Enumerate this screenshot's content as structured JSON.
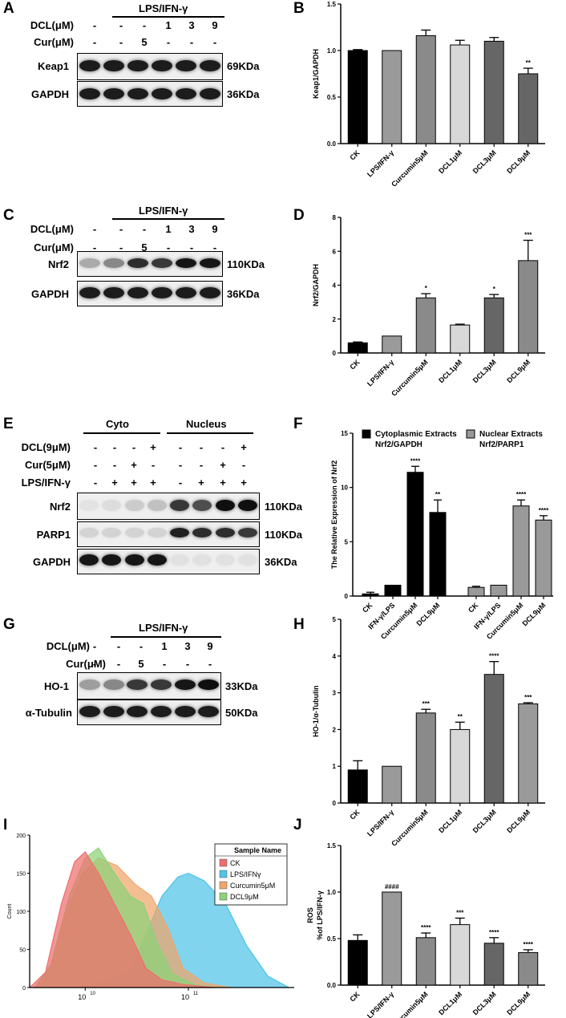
{
  "letters": [
    "A",
    "B",
    "C",
    "D",
    "E",
    "F",
    "G",
    "H",
    "I",
    "J"
  ],
  "units": {
    "keap1": "69KDa",
    "gapdh": "36KDa",
    "nrf2": "110KDa",
    "parp1": "110KDa",
    "ho1": "33KDa",
    "tubulin": "50KDa"
  },
  "blot_labels": {
    "treat": "LPS/IFN-γ",
    "dcl": "DCL(μM)",
    "cur": "Cur(μM)",
    "keap1": "Keap1",
    "gapdh": "GAPDH",
    "nrf2": "Nrf2",
    "parp1": "PARP1",
    "ho1": "HO-1",
    "tubulin": "α-Tubulin",
    "cyto": "Cyto",
    "nucleus": "Nucleus",
    "dcl9": "DCL(9μM)",
    "cur5": "Cur(5μM)",
    "lps_row": "LPS/IFN-γ"
  },
  "dose_rows": {
    "dcl": [
      "-",
      "-",
      "-",
      "1",
      "3",
      "9"
    ],
    "cur": [
      "-",
      "-",
      "5",
      "-",
      "-",
      "-"
    ]
  },
  "e_rows": {
    "dcl9": [
      "-",
      "-",
      "-",
      "+",
      "-",
      "-",
      "-",
      "+"
    ],
    "cur5": [
      "-",
      "-",
      "+",
      "-",
      "-",
      "-",
      "+",
      "-"
    ],
    "lps": [
      "-",
      "+",
      "+",
      "+",
      "-",
      "+",
      "+",
      "+"
    ]
  },
  "chart_data": [
    {
      "id": "B",
      "type": "bar",
      "ylabel": "Keap1/GAPDH",
      "ylim": [
        0,
        1.5
      ],
      "yticks": [
        "0.0",
        "0.5",
        "1.0",
        "1.5"
      ],
      "categories": [
        "CK",
        "LPS/IFN-γ",
        "Curcumin5μM",
        "DCL1μM",
        "DCL3μM",
        "DCL9μM"
      ],
      "values": [
        1.0,
        1.0,
        1.16,
        1.06,
        1.1,
        0.75
      ],
      "errors": [
        0.01,
        0,
        0.06,
        0.05,
        0.04,
        0.06
      ],
      "labels": [
        "",
        "",
        "",
        "",
        "",
        "**"
      ],
      "colors": [
        "#000000",
        "#9a9a9a",
        "#8a8a8a",
        "#d8d8d8",
        "#666666",
        "#666666"
      ]
    },
    {
      "id": "D",
      "type": "bar",
      "ylabel": "Nrf2/GAPDH",
      "ylim": [
        0,
        8
      ],
      "yticks": [
        "0",
        "2",
        "4",
        "6",
        "8"
      ],
      "categories": [
        "CK",
        "LPS/IFN-γ",
        "Curcumin5μM",
        "DCL1μM",
        "DCL3μM",
        "DCL9μM"
      ],
      "values": [
        0.6,
        1.0,
        3.25,
        1.65,
        3.25,
        5.45
      ],
      "errors": [
        0.05,
        0,
        0.25,
        0.05,
        0.2,
        1.2
      ],
      "labels": [
        "",
        "",
        "*",
        "",
        "*",
        "***"
      ],
      "colors": [
        "#000000",
        "#9a9a9a",
        "#8a8a8a",
        "#d8d8d8",
        "#666666",
        "#8a8a8a"
      ]
    },
    {
      "id": "F",
      "type": "bar",
      "ylabel": "The Relative Expression of Nrf2",
      "ylim": [
        0,
        15
      ],
      "yticks": [
        "0",
        "5",
        "10",
        "15"
      ],
      "legend": [
        {
          "name": "Cytoplasmic Extracts Nrf2/GAPDH",
          "color": "#000000"
        },
        {
          "name": "Nuclear Extracts Nrf2/PARP1",
          "color": "#999999"
        }
      ],
      "groups": [
        {
          "categories": [
            "CK",
            "IFN-γ/LPS",
            "Curcumin5μM",
            "DCL9μM"
          ],
          "values": [
            0.2,
            1.0,
            11.4,
            7.7
          ],
          "errors": [
            0.15,
            0,
            0.55,
            1.15
          ],
          "labels": [
            "",
            "",
            "****",
            "**"
          ],
          "color": "#000000"
        },
        {
          "categories": [
            "CK",
            "IFN-γ/LPS",
            "Curcumin5μM",
            "DCL9μM"
          ],
          "values": [
            0.8,
            1.0,
            8.3,
            7.0
          ],
          "errors": [
            0.1,
            0,
            0.55,
            0.4
          ],
          "labels": [
            "",
            "",
            "****",
            "****"
          ],
          "color": "#999999"
        }
      ]
    },
    {
      "id": "H",
      "type": "bar",
      "ylabel": "HO-1/α-Tubulin",
      "ylim": [
        0,
        5
      ],
      "yticks": [
        "0",
        "1",
        "2",
        "3",
        "4",
        "5"
      ],
      "categories": [
        "CK",
        "LPS/IFN-γ",
        "Curcumin5μM",
        "DCL1μM",
        "DCL3μM",
        "DCL9μM"
      ],
      "values": [
        0.9,
        1.0,
        2.45,
        2.0,
        3.5,
        2.7
      ],
      "errors": [
        0.25,
        0,
        0.1,
        0.2,
        0.35,
        0.03
      ],
      "labels": [
        "",
        "",
        "***",
        "**",
        "****",
        "***"
      ],
      "colors": [
        "#000000",
        "#9a9a9a",
        "#8a8a8a",
        "#d8d8d8",
        "#666666",
        "#9a9a9a"
      ]
    },
    {
      "id": "J",
      "type": "bar",
      "ylabel": "ROS %of LPS/IFN-γ",
      "ylim": [
        0,
        1.5
      ],
      "yticks": [
        "0.0",
        "0.5",
        "1.0",
        "1.5"
      ],
      "categories": [
        "CK",
        "LPS/IFN-γ",
        "Curcumin5μM",
        "DCL1μM",
        "DCL3μM",
        "DCL9μM"
      ],
      "values": [
        0.48,
        1.0,
        0.51,
        0.65,
        0.45,
        0.35
      ],
      "errors": [
        0.06,
        0,
        0.05,
        0.07,
        0.06,
        0.03
      ],
      "labels": [
        "",
        "####",
        "****",
        "***",
        "****",
        "****"
      ],
      "colors": [
        "#000000",
        "#9a9a9a",
        "#8a8a8a",
        "#d8d8d8",
        "#666666",
        "#8a8a8a"
      ]
    },
    {
      "id": "I",
      "type": "area",
      "ylabel": "Count",
      "yticks": [
        "0",
        "50",
        "100",
        "150",
        "200"
      ],
      "xticks": [
        "10",
        "10"
      ],
      "xtick_exps": [
        "10",
        "11"
      ],
      "legend_title": "Sample Name",
      "series": [
        {
          "name": "CK",
          "color": "#ee6e6e",
          "peak": 178
        },
        {
          "name": "LPS/IFNγ",
          "color": "#4fc3e8",
          "peak": 150
        },
        {
          "name": "Curcumin5μM",
          "color": "#f0a56a",
          "peak": 170
        },
        {
          "name": "DCL9μM",
          "color": "#8cd279",
          "peak": 183
        }
      ]
    }
  ]
}
